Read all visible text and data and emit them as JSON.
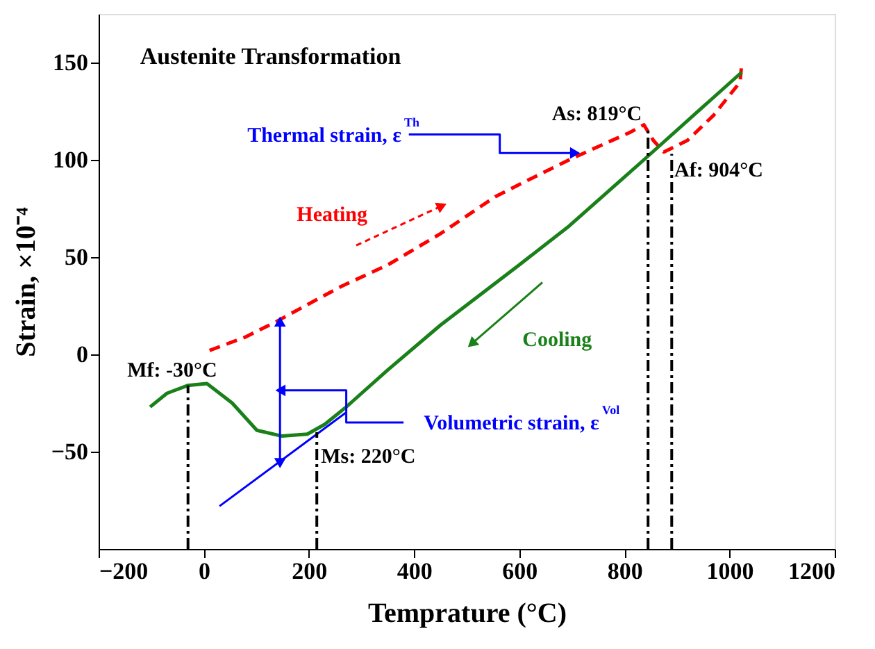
{
  "chart_data": {
    "type": "line",
    "xlabel": "Temprature (°C)",
    "ylabel": "Strain, ×10⁻⁴",
    "xlim": [
      -200,
      1200
    ],
    "xticks": [
      -200,
      0,
      200,
      400,
      600,
      800,
      1000,
      1200
    ],
    "ylim": [
      -100,
      175
    ],
    "yticks": [
      -50,
      0,
      50,
      100,
      150
    ],
    "grid": false,
    "marker": "none",
    "series": [
      {
        "color": "#ff0000",
        "line_style": "dashed",
        "x": [
          11,
          80,
          139,
          200,
          262,
          350,
          450,
          554,
          620,
          695,
          760,
          810,
          837,
          855,
          875,
          920,
          970,
          1020,
          1023
        ],
        "values": [
          2,
          9,
          17,
          26,
          35,
          46,
          62,
          81,
          90,
          100,
          108,
          114,
          118,
          110,
          104,
          110,
          123,
          140,
          149
        ]
      },
      {
        "color": "#1a801a",
        "line_style": "solid",
        "x": [
          1023,
          837,
          695,
          600,
          450,
          350,
          271,
          230,
          197,
          149,
          101,
          54,
          6,
          -31,
          -70,
          -102
        ],
        "values": [
          145,
          100,
          66,
          46,
          15,
          -8,
          -27,
          -36,
          -41,
          -42,
          -39,
          -25,
          -15,
          -16,
          -20,
          -27
        ]
      },
      {
        "color": "#0000ff",
        "line_style": "solid",
        "x": [
          30,
          270
        ],
        "values": [
          -78,
          -30
        ]
      }
    ],
    "annotations": [
      "Austenite Transformation",
      {
        "text": "Mf: -30°C",
        "x": -30,
        "y": -16
      },
      {
        "text": "Ms: 220°C",
        "x": 215,
        "y": -40
      },
      {
        "text": "As: 819°C",
        "x": 845,
        "y": 117
      },
      {
        "text": "Af: 904°C",
        "x": 890,
        "y": 103
      },
      "Heating",
      "Cooling",
      {
        "text": "Thermal strain, ε$^{Th}$",
        "x": 703,
        "y": 103.5
      },
      {
        "text": "Volumetric strain, ε$^{Vol}$",
        "x": 149,
        "y": -18.5
      }
    ]
  }
}
